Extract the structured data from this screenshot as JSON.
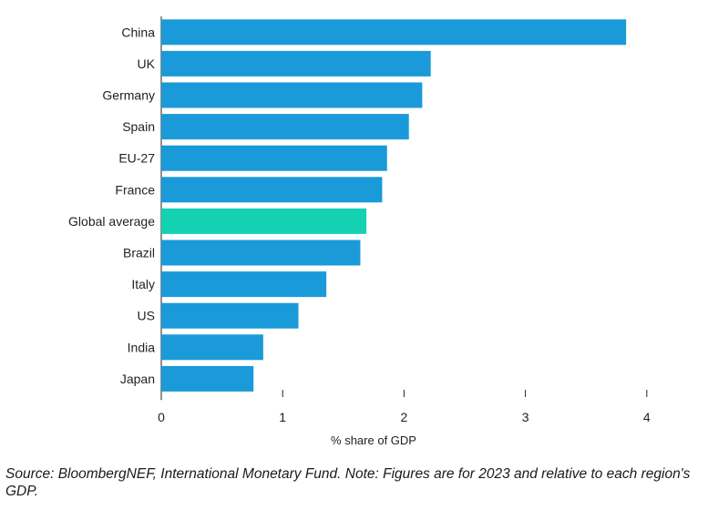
{
  "chart_data": {
    "type": "bar",
    "orientation": "horizontal",
    "categories": [
      "China",
      "UK",
      "Germany",
      "Spain",
      "EU-27",
      "France",
      "Global average",
      "Brazil",
      "Italy",
      "US",
      "India",
      "Japan"
    ],
    "values": [
      3.83,
      2.22,
      2.15,
      2.04,
      1.86,
      1.82,
      1.69,
      1.64,
      1.36,
      1.13,
      0.84,
      0.76
    ],
    "highlight_category": "Global average",
    "xlabel": "% share of GDP",
    "xlim": [
      0,
      4
    ],
    "xticks": [
      0,
      1,
      2,
      3,
      4
    ],
    "grid": false,
    "colors": {
      "bar": "#1a9ad9",
      "highlight": "#14d1b3",
      "axis": "#222222"
    }
  },
  "footer": {
    "source": "Source: BloombergNEF, International Monetary Fund. Note: Figures are for 2023 and relative to each region's GDP."
  }
}
